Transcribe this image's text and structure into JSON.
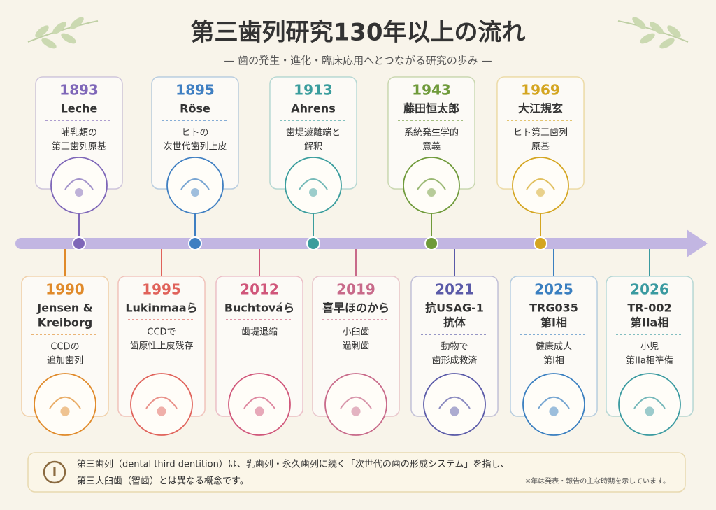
{
  "title": "第三歯列研究130年以上の流れ",
  "subtitle": "— 歯の発生・進化・臨床応用へとつながる研究の歩み —",
  "top_events": [
    {
      "year": "1893",
      "name": [
        "Leche"
      ],
      "desc": [
        "哺乳類の",
        "第三歯列原基"
      ],
      "color": "#7e66b8"
    },
    {
      "year": "1895",
      "name": [
        "Röse"
      ],
      "desc": [
        "ヒトの",
        "次世代歯列上皮"
      ],
      "color": "#3f7fc2"
    },
    {
      "year": "1913",
      "name": [
        "Ahrens"
      ],
      "desc": [
        "歯堤遊離端と",
        "解釈"
      ],
      "color": "#3a9d9d"
    },
    {
      "year": "1943",
      "name": [
        "藤田恒太郎"
      ],
      "desc": [
        "系統発生学的",
        "意義"
      ],
      "color": "#6f9a3a"
    },
    {
      "year": "1969",
      "name": [
        "大江規玄"
      ],
      "desc": [
        "ヒト第三歯列",
        "原基"
      ],
      "color": "#d4a520"
    }
  ],
  "bottom_events": [
    {
      "year": "1990",
      "name": [
        "Jensen &",
        "Kreiborg"
      ],
      "desc": [
        "CCDの",
        "追加歯列"
      ],
      "color": "#e08a2a"
    },
    {
      "year": "1995",
      "name": [
        "Lukinmaaら"
      ],
      "desc": [
        "CCDで",
        "歯原性上皮残存"
      ],
      "color": "#e0625a"
    },
    {
      "year": "2012",
      "name": [
        "Buchtováら"
      ],
      "desc": [
        "歯堤退縮"
      ],
      "color": "#d0567a"
    },
    {
      "year": "2019",
      "name": [
        "喜早ほのから"
      ],
      "desc": [
        "小臼歯",
        "過剰歯"
      ],
      "color": "#c86a8a"
    },
    {
      "year": "2021",
      "name": [
        "抗USAG-1",
        "抗体"
      ],
      "desc": [
        "動物で",
        "歯形成救済"
      ],
      "color": "#5a5aa8"
    },
    {
      "year": "2025",
      "name": [
        "TRG035",
        "第Ⅰ相"
      ],
      "desc": [
        "健康成人",
        "第Ⅰ相"
      ],
      "color": "#3a7fc0"
    },
    {
      "year": "2026",
      "name": [
        "TR-002",
        "第IIa相"
      ],
      "desc": [
        "小児",
        "第IIa相準備"
      ],
      "color": "#3a9aa0"
    }
  ],
  "note": {
    "lines": [
      "第三歯列（dental third dentition）は、乳歯列・永久歯列に続く「次世代の歯の形成システム」を指し、",
      "第三大臼歯（智歯）とは異なる概念です。"
    ],
    "footnote": "※年は発表・報告の主な時期を示しています。"
  }
}
